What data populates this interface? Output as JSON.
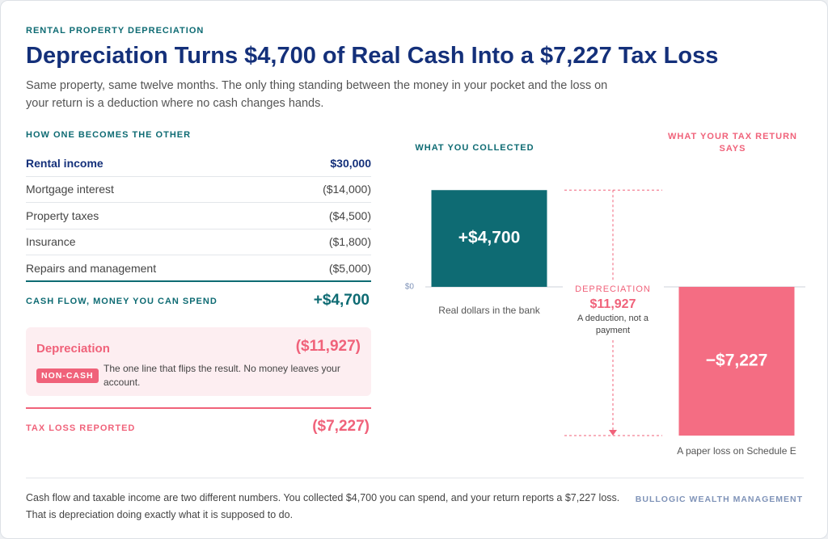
{
  "header": {
    "eyebrow": "RENTAL PROPERTY DEPRECIATION",
    "title": "Depreciation Turns $4,700 of Real Cash Into a $7,227 Tax Loss",
    "subtitle": "Same property, same twelve months. The only thing standing between the money in your pocket and the loss on your return is a deduction where no cash changes hands."
  },
  "table": {
    "heading": "HOW ONE BECOMES THE OTHER",
    "rows": [
      [
        "Rental income",
        "$30,000"
      ],
      [
        "Mortgage interest",
        "($14,000)"
      ],
      [
        "Property taxes",
        "($4,500)"
      ],
      [
        "Insurance",
        "($1,800)"
      ],
      [
        "Repairs and management",
        "($5,000)"
      ]
    ],
    "cash_flow": {
      "label": "CASH FLOW, MONEY YOU CAN SPEND",
      "value": "+$4,700"
    },
    "depreciation": {
      "label": "Depreciation",
      "value": "($11,927)",
      "tag": "NON-CASH",
      "note": "The one line that flips the result. No money leaves your account."
    },
    "tax_loss": {
      "label": "TAX LOSS REPORTED",
      "value": "($7,227)"
    }
  },
  "chart_data": {
    "type": "bar",
    "categories": [
      "WHAT YOU COLLECTED",
      "WHAT YOUR TAX RETURN SAYS"
    ],
    "values": [
      4700,
      -7227
    ],
    "value_labels": [
      "+$4,700",
      "−$7,227"
    ],
    "captions": [
      "Real dollars in the bank",
      "A paper loss on Schedule E"
    ],
    "colors": [
      "#0e6b73",
      "#f46d83"
    ],
    "ylim": [
      -7500,
      5000
    ],
    "yticks": [
      {
        "value": 0,
        "label": "$0"
      }
    ],
    "annotation": {
      "label": "DEPRECIATION",
      "value_label": "$11,927",
      "note": "A deduction, not a payment"
    }
  },
  "footer": {
    "text": "Cash flow and taxable income are two different numbers. You collected $4,700 you can spend, and your return reports a $7,227 loss. That is depreciation doing exactly what it is supposed to do.",
    "brand": "BULLOGIC WEALTH MANAGEMENT"
  }
}
